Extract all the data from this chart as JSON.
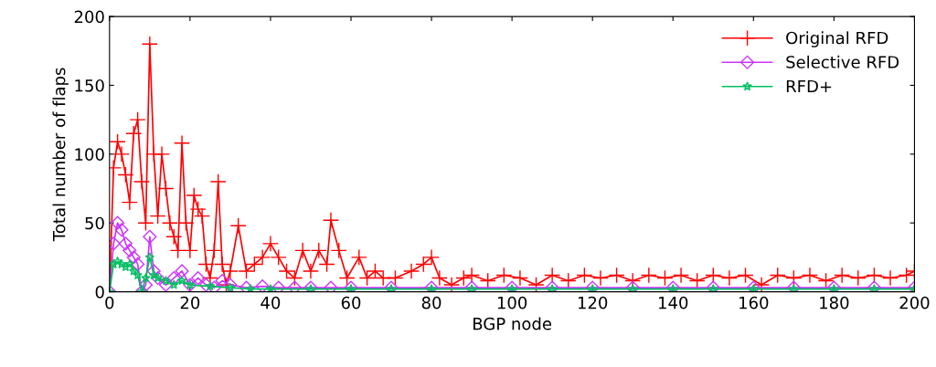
{
  "chart_data": {
    "type": "line",
    "xlabel": "BGP node",
    "ylabel": "Total number of flaps",
    "xlim": [
      0,
      200
    ],
    "ylim": [
      0,
      200
    ],
    "xticks": [
      0,
      20,
      40,
      60,
      80,
      100,
      120,
      140,
      160,
      180,
      200
    ],
    "yticks": [
      0,
      50,
      100,
      150,
      200
    ],
    "grid": false,
    "legend": "top right",
    "series": [
      {
        "name": "Original RFD",
        "color": "#ff0000",
        "marker": "cross",
        "x": [
          0,
          1,
          2,
          3,
          4,
          5,
          6,
          7,
          8,
          9,
          10,
          11,
          12,
          13,
          14,
          15,
          16,
          17,
          18,
          19,
          20,
          21,
          22,
          23,
          24,
          25,
          26,
          27,
          28,
          29,
          30,
          32,
          34,
          36,
          38,
          40,
          42,
          44,
          46,
          48,
          50,
          52,
          54,
          55,
          57,
          59,
          62,
          64,
          66,
          68,
          71,
          75,
          78,
          80,
          82,
          85,
          88,
          90,
          94,
          98,
          102,
          106,
          110,
          114,
          118,
          122,
          126,
          130,
          134,
          138,
          142,
          146,
          150,
          154,
          158,
          162,
          166,
          170,
          174,
          178,
          182,
          186,
          190,
          194,
          198,
          200
        ],
        "values": [
          0,
          90,
          109,
          100,
          85,
          65,
          115,
          125,
          80,
          50,
          180,
          100,
          55,
          100,
          75,
          50,
          40,
          30,
          108,
          50,
          30,
          70,
          60,
          55,
          20,
          10,
          30,
          80,
          20,
          5,
          15,
          48,
          15,
          20,
          25,
          35,
          25,
          15,
          10,
          30,
          15,
          30,
          20,
          52,
          30,
          10,
          25,
          10,
          15,
          10,
          10,
          15,
          20,
          25,
          10,
          5,
          10,
          12,
          8,
          12,
          10,
          5,
          12,
          8,
          12,
          10,
          12,
          8,
          12,
          10,
          12,
          8,
          12,
          10,
          12,
          5,
          12,
          10,
          12,
          8,
          12,
          10,
          12,
          10,
          12,
          15
        ]
      },
      {
        "name": "Selective RFD",
        "color": "#cc33ff",
        "marker": "diamond",
        "x": [
          0,
          1,
          2,
          3,
          4,
          5,
          6,
          7,
          8,
          9,
          10,
          11,
          12,
          14,
          16,
          18,
          20,
          22,
          24,
          26,
          28,
          30,
          34,
          38,
          42,
          46,
          50,
          55,
          60,
          70,
          80,
          90,
          100,
          110,
          120,
          130,
          140,
          150,
          160,
          170,
          180,
          190,
          200
        ],
        "values": [
          0,
          35,
          50,
          45,
          35,
          30,
          25,
          20,
          0,
          5,
          40,
          15,
          10,
          5,
          10,
          15,
          5,
          10,
          5,
          3,
          8,
          5,
          3,
          4,
          3,
          3,
          3,
          3,
          3,
          3,
          3,
          3,
          3,
          3,
          3,
          3,
          3,
          3,
          3,
          3,
          3,
          3,
          3
        ]
      },
      {
        "name": "RFD+",
        "color": "#00c060",
        "marker": "star",
        "x": [
          0,
          1,
          2,
          3,
          4,
          5,
          6,
          7,
          8,
          9,
          10,
          11,
          12,
          14,
          16,
          18,
          20,
          25,
          30,
          35,
          40,
          50,
          60,
          70,
          80,
          90,
          100,
          110,
          120,
          130,
          140,
          150,
          160,
          170,
          180,
          190,
          200
        ],
        "values": [
          0,
          20,
          22,
          20,
          18,
          20,
          15,
          12,
          0,
          10,
          25,
          12,
          10,
          8,
          5,
          8,
          5,
          4,
          3,
          2,
          2,
          2,
          2,
          2,
          2,
          2,
          2,
          2,
          2,
          2,
          2,
          2,
          2,
          2,
          2,
          2,
          2
        ]
      }
    ]
  }
}
